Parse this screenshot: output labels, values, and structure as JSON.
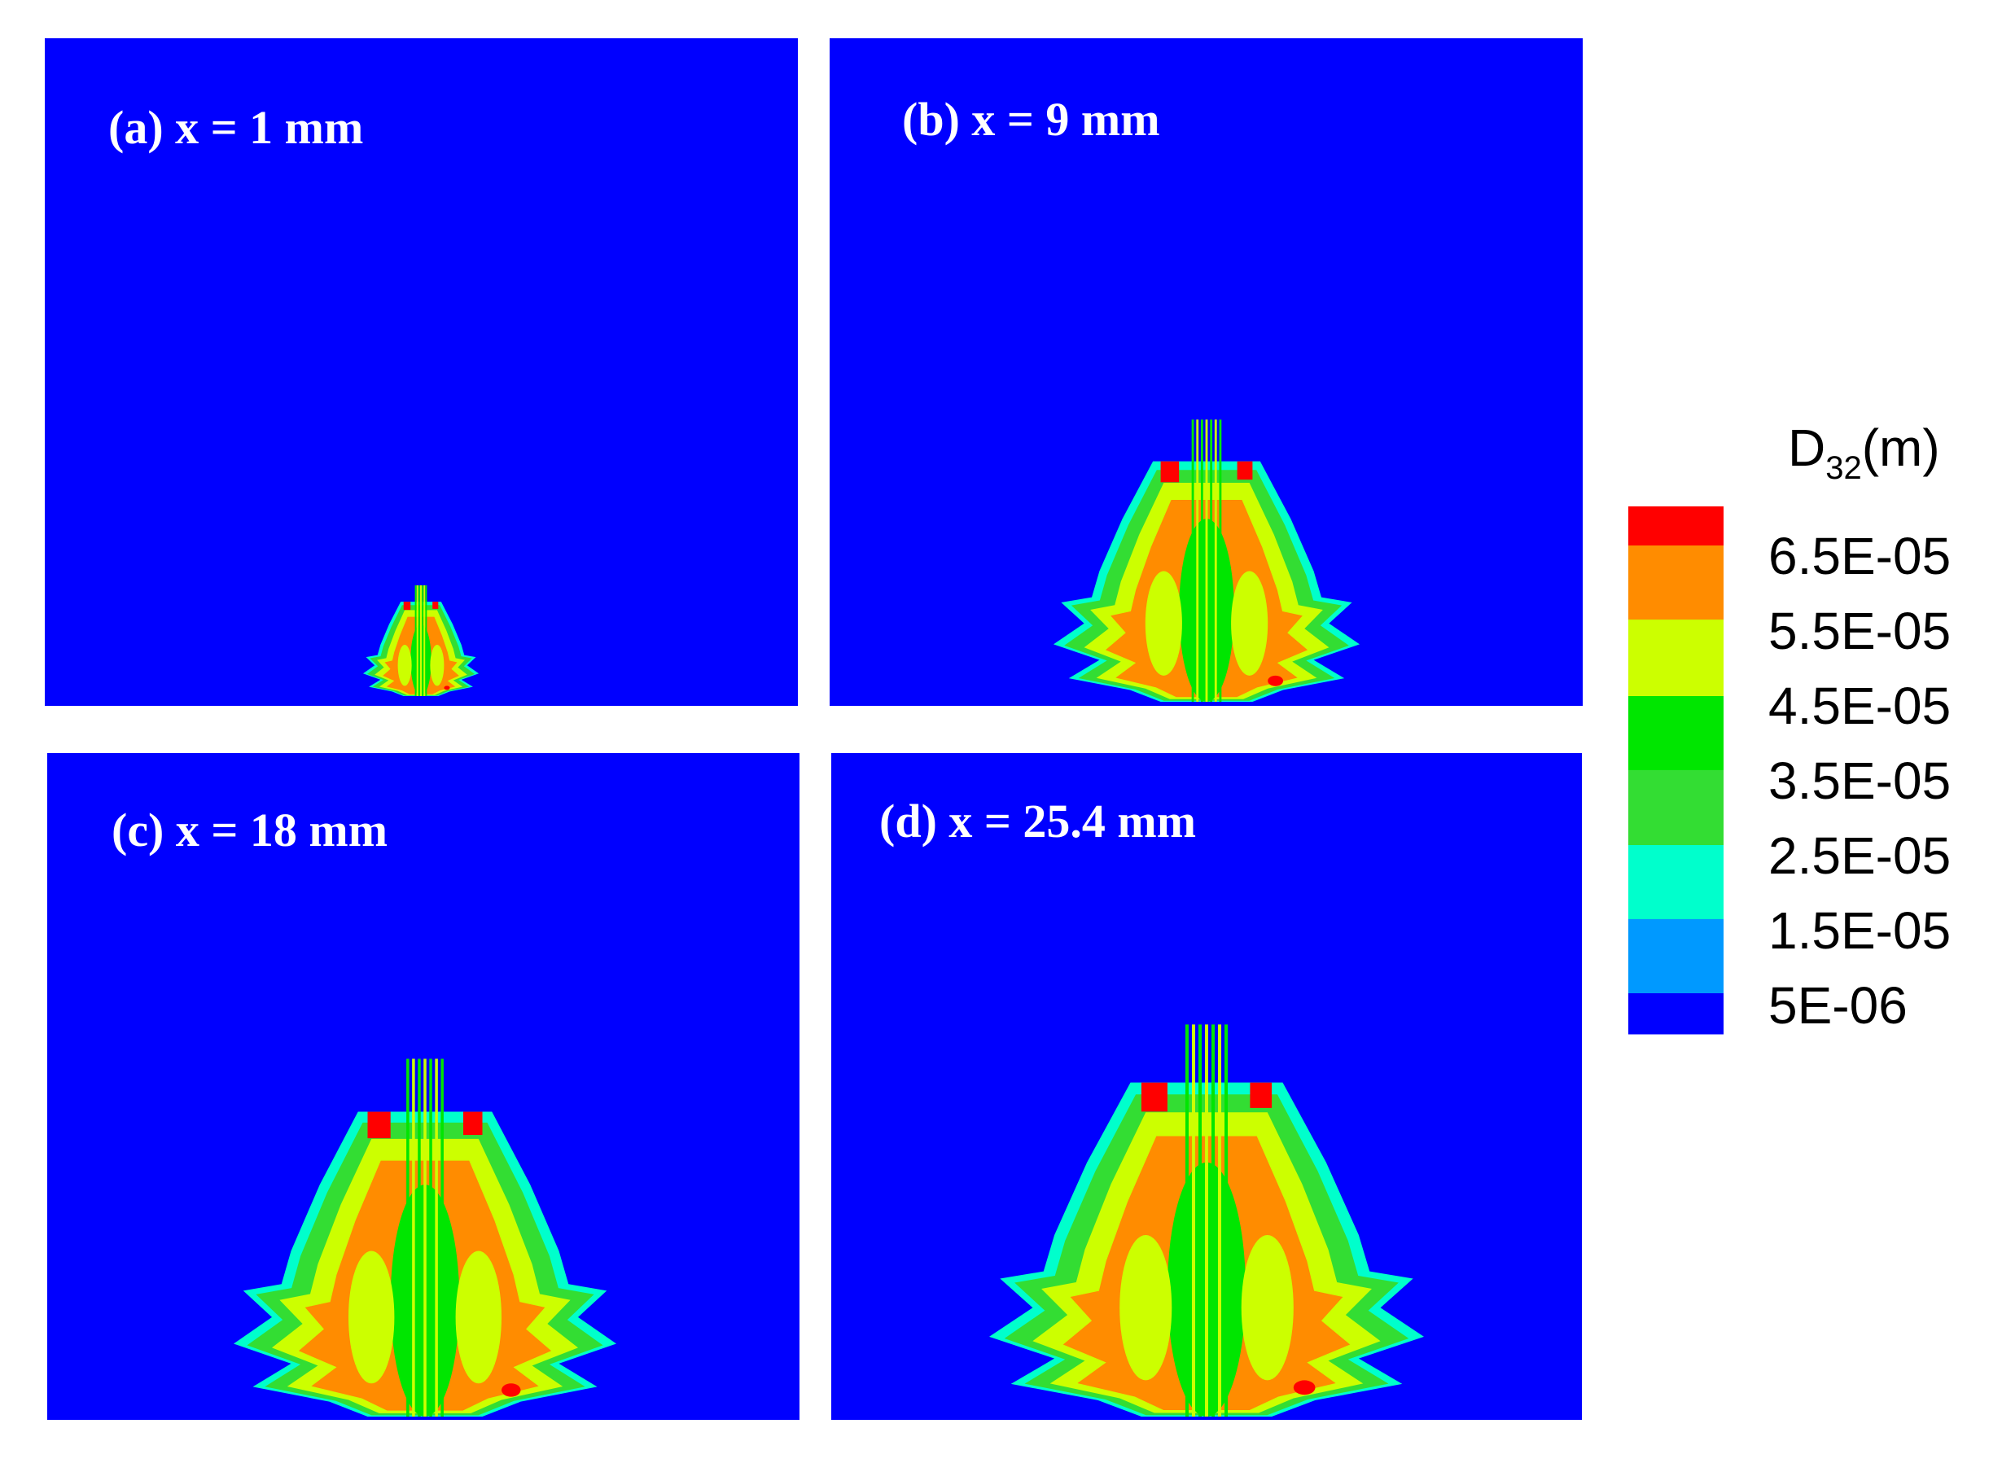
{
  "panels": [
    {
      "label": "(a) x = 1 mm"
    },
    {
      "label": "(b) x = 9 mm"
    },
    {
      "label": "(c) x = 18 mm"
    },
    {
      "label": "(d) x = 25.4 mm"
    }
  ],
  "colorbar": {
    "title": {
      "symbol": "D",
      "subscript": "32",
      "unit": "(m)"
    },
    "levels": [
      "6.5E-05",
      "5.5E-05",
      "4.5E-05",
      "3.5E-05",
      "2.5E-05",
      "1.5E-05",
      "5E-06"
    ],
    "colors": [
      "#ff0000",
      "#ff8c00",
      "#ccff00",
      "#00e600",
      "#33dd33",
      "#00ffcc",
      "#0099ff",
      "#0000ff"
    ]
  }
}
